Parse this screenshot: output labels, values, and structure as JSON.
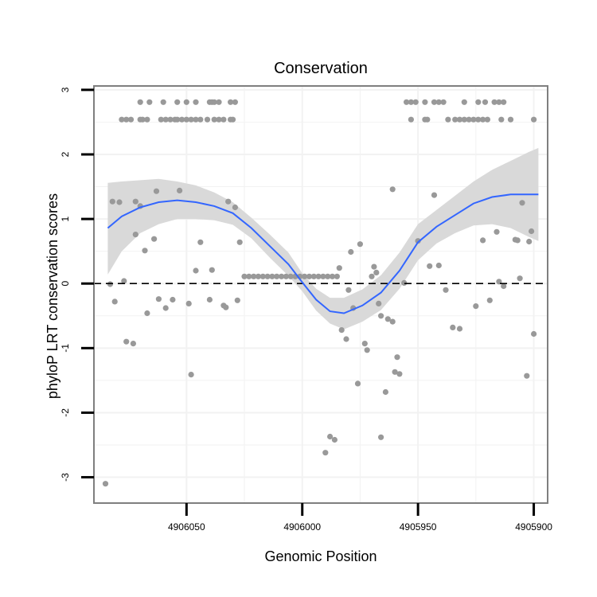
{
  "chart_data": {
    "type": "scatter",
    "title": "Conservation",
    "xlabel": "Genomic Position",
    "ylabel": "phyloP LRT conservation scores",
    "xlim": [
      4906090,
      4905894
    ],
    "ylim": [
      -3.4,
      3.06
    ],
    "x_ticks": [
      4906050,
      4906000,
      4905950,
      4905900
    ],
    "x_tick_labels": [
      "4906050",
      "4906000",
      "4905950",
      "4905900"
    ],
    "y_ticks": [
      -3,
      -2,
      -1,
      0,
      1,
      2,
      3
    ],
    "y_tick_labels": [
      "-3",
      "-2",
      "-1",
      "0",
      "1",
      "2",
      "3"
    ],
    "grid": true,
    "reference_line": {
      "y": 0,
      "style": "dashed"
    },
    "colors": {
      "points": "#999999",
      "smooth": "#3366ff",
      "ribbon": "#d9d9d9",
      "border": "#7f7f7f",
      "grid": "#f2f2f2"
    },
    "points": [
      [
        4906078,
        2.54
      ],
      [
        4906076,
        2.54
      ],
      [
        4906074,
        2.54
      ],
      [
        4906070,
        2.54
      ],
      [
        4906069,
        2.54
      ],
      [
        4906067,
        2.54
      ],
      [
        4906061,
        2.54
      ],
      [
        4906059,
        2.54
      ],
      [
        4906057,
        2.54
      ],
      [
        4906055,
        2.54
      ],
      [
        4906054,
        2.54
      ],
      [
        4906052,
        2.54
      ],
      [
        4906050,
        2.54
      ],
      [
        4906048,
        2.54
      ],
      [
        4906046,
        2.54
      ],
      [
        4906044,
        2.54
      ],
      [
        4906041,
        2.54
      ],
      [
        4906038,
        2.54
      ],
      [
        4906036,
        2.54
      ],
      [
        4906034,
        2.54
      ],
      [
        4906031,
        2.54
      ],
      [
        4906030,
        2.54
      ],
      [
        4906070,
        2.81
      ],
      [
        4906066,
        2.81
      ],
      [
        4906060,
        2.81
      ],
      [
        4906054,
        2.81
      ],
      [
        4906050,
        2.81
      ],
      [
        4906046,
        2.81
      ],
      [
        4906040,
        2.81
      ],
      [
        4906039,
        2.81
      ],
      [
        4906038,
        2.81
      ],
      [
        4906036,
        2.81
      ],
      [
        4906031,
        2.81
      ],
      [
        4906029,
        2.81
      ],
      [
        4905953,
        2.54
      ],
      [
        4905947,
        2.54
      ],
      [
        4905946,
        2.54
      ],
      [
        4905937,
        2.54
      ],
      [
        4905934,
        2.54
      ],
      [
        4905932,
        2.54
      ],
      [
        4905930,
        2.54
      ],
      [
        4905928,
        2.54
      ],
      [
        4905926,
        2.54
      ],
      [
        4905924,
        2.54
      ],
      [
        4905922,
        2.54
      ],
      [
        4905920,
        2.54
      ],
      [
        4905914,
        2.54
      ],
      [
        4905910,
        2.54
      ],
      [
        4905900,
        2.54
      ],
      [
        4905955,
        2.81
      ],
      [
        4905953,
        2.81
      ],
      [
        4905951,
        2.81
      ],
      [
        4905947,
        2.81
      ],
      [
        4905943,
        2.81
      ],
      [
        4905941,
        2.81
      ],
      [
        4905939,
        2.81
      ],
      [
        4905930,
        2.81
      ],
      [
        4905924,
        2.81
      ],
      [
        4905921,
        2.81
      ],
      [
        4905917,
        2.81
      ],
      [
        4905915,
        2.81
      ],
      [
        4905913,
        2.81
      ],
      [
        4906082,
        1.27
      ],
      [
        4906079,
        1.26
      ],
      [
        4906072,
        1.27
      ],
      [
        4906063,
        1.43
      ],
      [
        4906053,
        1.44
      ],
      [
        4906032,
        1.27
      ],
      [
        4906029,
        1.18
      ],
      [
        4905961,
        1.46
      ],
      [
        4905943,
        1.37
      ],
      [
        4905905,
        1.25
      ],
      [
        4906083,
        -0.01
      ],
      [
        4906081,
        -0.28
      ],
      [
        4906077,
        0.04
      ],
      [
        4906076,
        -0.9
      ],
      [
        4906073,
        -0.93
      ],
      [
        4906072,
        0.76
      ],
      [
        4906070,
        1.2
      ],
      [
        4906068,
        0.51
      ],
      [
        4906067,
        -0.46
      ],
      [
        4906064,
        0.69
      ],
      [
        4906062,
        -0.24
      ],
      [
        4906059,
        -0.38
      ],
      [
        4906056,
        -0.25
      ],
      [
        4906049,
        -0.31
      ],
      [
        4906046,
        0.2
      ],
      [
        4906044,
        0.64
      ],
      [
        4906040,
        -0.25
      ],
      [
        4906039,
        0.21
      ],
      [
        4906034,
        -0.34
      ],
      [
        4906033,
        -0.37
      ],
      [
        4906028,
        -0.26
      ],
      [
        4906027,
        0.64
      ],
      [
        4906025,
        0.11
      ],
      [
        4906023,
        0.11
      ],
      [
        4906021,
        0.11
      ],
      [
        4906019,
        0.11
      ],
      [
        4906017,
        0.11
      ],
      [
        4906015,
        0.11
      ],
      [
        4906013,
        0.11
      ],
      [
        4906011,
        0.11
      ],
      [
        4906009,
        0.11
      ],
      [
        4906007,
        0.11
      ],
      [
        4906005,
        0.11
      ],
      [
        4906003,
        0.11
      ],
      [
        4906001,
        0.11
      ],
      [
        4905999,
        0.11
      ],
      [
        4905997,
        0.11
      ],
      [
        4905995,
        0.11
      ],
      [
        4905993,
        0.11
      ],
      [
        4905991,
        0.11
      ],
      [
        4905989,
        0.11
      ],
      [
        4905987,
        0.11
      ],
      [
        4905985,
        0.11
      ],
      [
        4905984,
        0.24
      ],
      [
        4905983,
        -0.72
      ],
      [
        4905981,
        -0.86
      ],
      [
        4905980,
        -0.1
      ],
      [
        4905979,
        0.49
      ],
      [
        4905978,
        -0.38
      ],
      [
        4905976,
        -1.55
      ],
      [
        4905975,
        0.61
      ],
      [
        4905973,
        -0.93
      ],
      [
        4905972,
        -1.03
      ],
      [
        4905970,
        0.11
      ],
      [
        4905969,
        0.26
      ],
      [
        4905968,
        0.17
      ],
      [
        4905967,
        -0.31
      ],
      [
        4905966,
        -2.38
      ],
      [
        4905966,
        -0.5
      ],
      [
        4905964,
        -1.68
      ],
      [
        4905963,
        -0.55
      ],
      [
        4905961,
        -0.59
      ],
      [
        4905960,
        -1.37
      ],
      [
        4905959,
        -1.14
      ],
      [
        4905958,
        -1.4
      ],
      [
        4905956,
        0.01
      ],
      [
        4905950,
        0.66
      ],
      [
        4905945,
        0.27
      ],
      [
        4905941,
        0.28
      ],
      [
        4905938,
        -0.1
      ],
      [
        4905935,
        -0.68
      ],
      [
        4905932,
        -0.7
      ],
      [
        4905925,
        -0.35
      ],
      [
        4905922,
        0.67
      ],
      [
        4905919,
        -0.26
      ],
      [
        4905916,
        0.8
      ],
      [
        4905915,
        0.03
      ],
      [
        4905913,
        -0.04
      ],
      [
        4905908,
        0.68
      ],
      [
        4905907,
        0.67
      ],
      [
        4905906,
        0.08
      ],
      [
        4905903,
        -1.43
      ],
      [
        4905902,
        0.65
      ],
      [
        4905901,
        0.81
      ],
      [
        4905900,
        -0.78
      ],
      [
        4905990,
        -2.62
      ],
      [
        4905988,
        -2.37
      ],
      [
        4905986,
        -2.42
      ],
      [
        4906085,
        -3.1
      ],
      [
        4906048,
        -1.41
      ]
    ],
    "smooth": [
      [
        4906084,
        0.86
      ],
      [
        4906078,
        1.04
      ],
      [
        4906070,
        1.18
      ],
      [
        4906062,
        1.26
      ],
      [
        4906054,
        1.29
      ],
      [
        4906046,
        1.26
      ],
      [
        4906038,
        1.2
      ],
      [
        4906030,
        1.09
      ],
      [
        4906022,
        0.86
      ],
      [
        4906014,
        0.58
      ],
      [
        4906006,
        0.3
      ],
      [
        4906000,
        0.02
      ],
      [
        4905994,
        -0.25
      ],
      [
        4905988,
        -0.43
      ],
      [
        4905982,
        -0.46
      ],
      [
        4905974,
        -0.34
      ],
      [
        4905966,
        -0.14
      ],
      [
        4905958,
        0.2
      ],
      [
        4905950,
        0.64
      ],
      [
        4905942,
        0.88
      ],
      [
        4905934,
        1.06
      ],
      [
        4905926,
        1.24
      ],
      [
        4905918,
        1.34
      ],
      [
        4905910,
        1.38
      ],
      [
        4905902,
        1.38
      ],
      [
        4905898,
        1.38
      ]
    ],
    "ribbon_upper": [
      [
        4906084,
        1.56
      ],
      [
        4906078,
        1.58
      ],
      [
        4906070,
        1.6
      ],
      [
        4906062,
        1.62
      ],
      [
        4906054,
        1.58
      ],
      [
        4906046,
        1.52
      ],
      [
        4906038,
        1.41
      ],
      [
        4906030,
        1.26
      ],
      [
        4906022,
        1.02
      ],
      [
        4906014,
        0.76
      ],
      [
        4906006,
        0.48
      ],
      [
        4906000,
        0.16
      ],
      [
        4905994,
        -0.08
      ],
      [
        4905988,
        -0.22
      ],
      [
        4905982,
        -0.22
      ],
      [
        4905974,
        -0.09
      ],
      [
        4905966,
        0.13
      ],
      [
        4905958,
        0.48
      ],
      [
        4905950,
        0.92
      ],
      [
        4905942,
        1.14
      ],
      [
        4905934,
        1.36
      ],
      [
        4905926,
        1.58
      ],
      [
        4905918,
        1.76
      ],
      [
        4905910,
        1.9
      ],
      [
        4905902,
        2.04
      ],
      [
        4905898,
        2.1
      ]
    ],
    "ribbon_lower": [
      [
        4906084,
        0.14
      ],
      [
        4906078,
        0.5
      ],
      [
        4906070,
        0.78
      ],
      [
        4906062,
        0.92
      ],
      [
        4906054,
        1.0
      ],
      [
        4906046,
        1.0
      ],
      [
        4906038,
        0.98
      ],
      [
        4906030,
        0.91
      ],
      [
        4906022,
        0.7
      ],
      [
        4906014,
        0.4
      ],
      [
        4906006,
        0.12
      ],
      [
        4906000,
        -0.12
      ],
      [
        4905994,
        -0.42
      ],
      [
        4905988,
        -0.62
      ],
      [
        4905982,
        -0.71
      ],
      [
        4905974,
        -0.59
      ],
      [
        4905966,
        -0.41
      ],
      [
        4905958,
        -0.08
      ],
      [
        4905950,
        0.36
      ],
      [
        4905942,
        0.62
      ],
      [
        4905934,
        0.78
      ],
      [
        4905926,
        0.9
      ],
      [
        4905918,
        0.92
      ],
      [
        4905910,
        0.86
      ],
      [
        4905902,
        0.72
      ],
      [
        4905898,
        0.66
      ]
    ]
  }
}
